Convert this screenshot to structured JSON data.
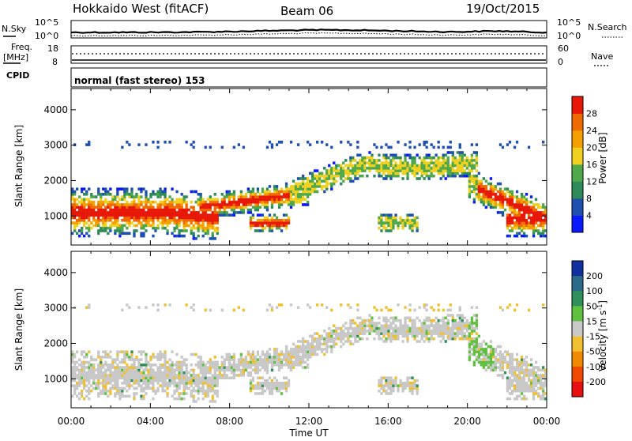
{
  "header": {
    "station": "Hokkaido West (fitACF)",
    "beam": "Beam 06",
    "date": "19/Oct/2015"
  },
  "params": {
    "nsky_label": "N.Sky",
    "nsearch_label": "N.Search",
    "noise_ticks_left": [
      "10^5",
      "10^0"
    ],
    "noise_ticks_right": [
      "10^5",
      "10^0"
    ],
    "freq_label": "Freq.",
    "freq_unit": "[MHz]",
    "freq_ticks": [
      "18",
      "8"
    ],
    "nave_label": "Nave",
    "nave_ticks": [
      "60",
      "0"
    ],
    "cpid_label": "CPID",
    "cpid_text": "normal (fast stereo) 153"
  },
  "axes": {
    "ylabel": "Slant Range [km]",
    "yticks": [
      1000,
      2000,
      3000,
      4000
    ],
    "yrange": [
      180,
      4600
    ],
    "xticks": [
      "00:00",
      "04:00",
      "08:00",
      "12:00",
      "16:00",
      "20:00",
      "00:00"
    ],
    "xrange": [
      0,
      24
    ],
    "xlabel": "Time UT"
  },
  "chart_data": [
    {
      "type": "heatmap",
      "panel": "power",
      "title": "Hokkaido West (fitACF)",
      "ylabel": "Slant Range [km]",
      "xlabel": "Time UT",
      "colorbar_label": "Power [dB]",
      "colorbar_ticks": [
        4,
        8,
        12,
        16,
        20,
        24,
        28
      ],
      "colorbar_range": [
        0,
        32
      ],
      "colors": [
        "#0a1aff",
        "#1f4fb0",
        "#2f8a5a",
        "#4fa84a",
        "#f0d020",
        "#f4a000",
        "#ef6a00",
        "#e81808"
      ]
    },
    {
      "type": "heatmap",
      "panel": "velocity",
      "ylabel": "Slant Range [km]",
      "xlabel": "Time UT",
      "colorbar_label": "Velocity [m s^-1]",
      "colorbar_label_main": "Velocity [m s",
      "colorbar_label_sup": "-1",
      "colorbar_label_end": "]",
      "colorbar_ticks": [
        200,
        100,
        50,
        15,
        -15,
        -50,
        -100,
        -200
      ],
      "colors": [
        "#1030a0",
        "#2a6a8a",
        "#30905a",
        "#60c040",
        "#c8c8c8",
        "#f0c030",
        "#f08a00",
        "#ef4a00",
        "#e81010"
      ]
    }
  ]
}
